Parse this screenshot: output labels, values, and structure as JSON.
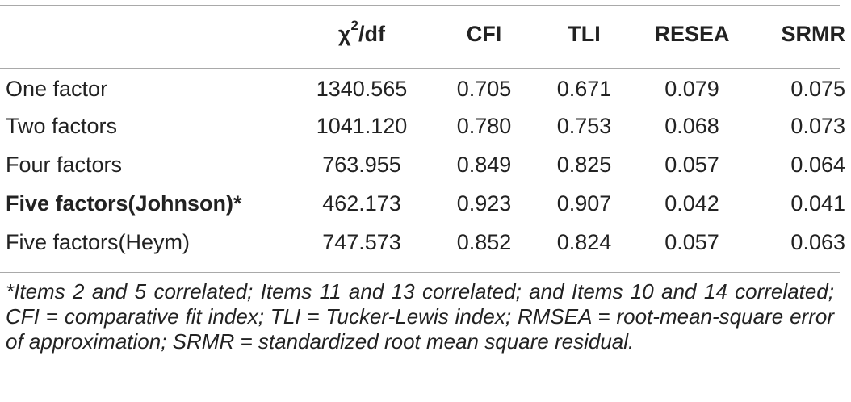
{
  "table": {
    "headers": {
      "chi_symbol": "χ",
      "chi_exponent": "2",
      "chi_suffix": "/df",
      "cfi": "CFI",
      "tli": "TLI",
      "resea": "RESEA",
      "srmr": "SRMR"
    },
    "rows": [
      {
        "model": "One factor",
        "chi_df": "1340.565",
        "cfi": "0.705",
        "tli": "0.671",
        "resea": "0.079",
        "srmr": "0.075"
      },
      {
        "model": "Two factors",
        "chi_df": "1041.120",
        "cfi": "0.780",
        "tli": "0.753",
        "resea": "0.068",
        "srmr": "0.073"
      },
      {
        "model": "Four factors",
        "chi_df": "763.955",
        "cfi": "0.849",
        "tli": "0.825",
        "resea": "0.057",
        "srmr": "0.064"
      },
      {
        "model": "Five factors(Johnson)*",
        "chi_df": "462.173",
        "cfi": "0.923",
        "tli": "0.907",
        "resea": "0.042",
        "srmr": "0.041"
      },
      {
        "model": "Five factors(Heym)",
        "chi_df": "747.573",
        "cfi": "0.852",
        "tli": "0.824",
        "resea": "0.057",
        "srmr": "0.063"
      }
    ]
  },
  "footnote": "*Items 2 and 5 correlated; Items 11 and 13 correlated; and Items 10 and 14 correlated; CFI = comparative fit index; TLI = Tucker-Lewis index; RMSEA = root-mean-square error of approximation; SRMR = standardized root mean square residual."
}
